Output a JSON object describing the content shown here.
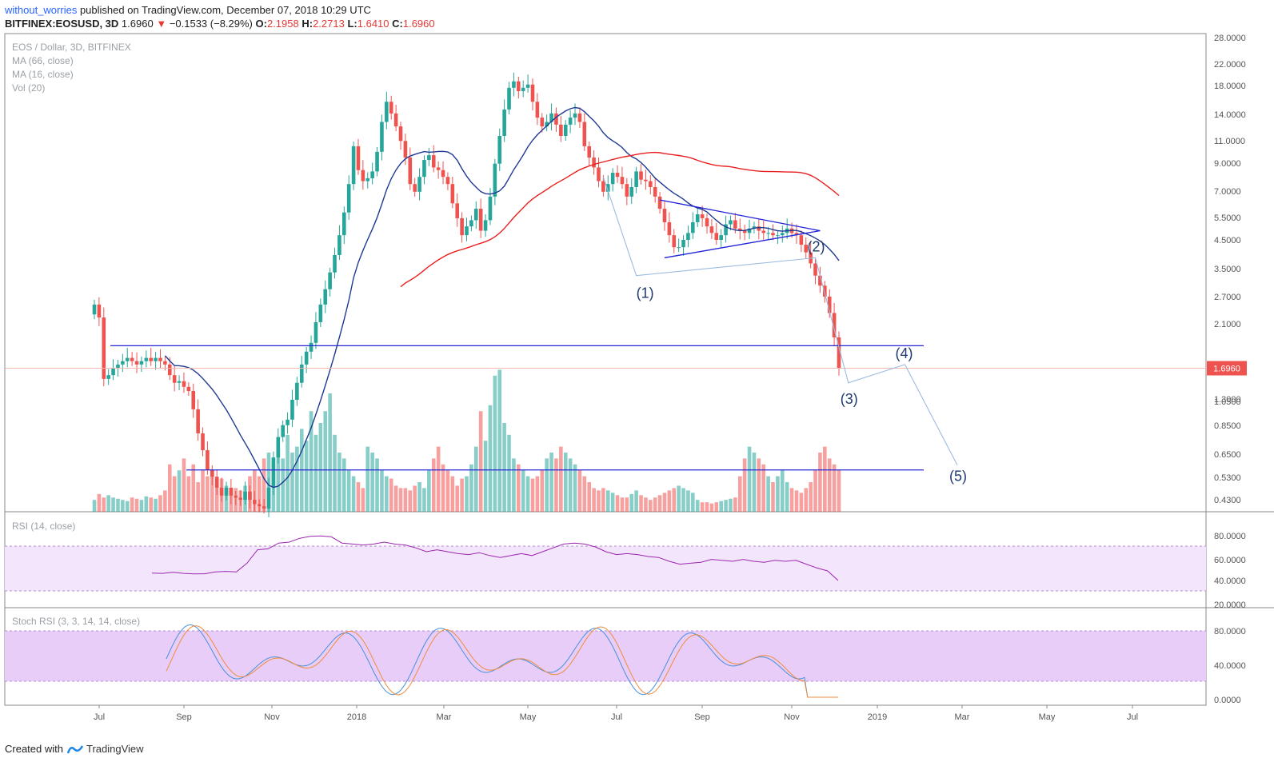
{
  "header": {
    "user": "without_worries",
    "published": "published on TradingView.com, December 07, 2018 10:29 UTC",
    "symbol": "BITFINEX:EOSUSD, 3D",
    "last": "1.6960",
    "change": "−0.1533 (−8.29%)",
    "o_label": "O:",
    "o": "2.1958",
    "h_label": "H:",
    "h": "2.2713",
    "l_label": "L:",
    "l": "1.6410",
    "c_label": "C:",
    "c": "1.6960"
  },
  "legend": {
    "title": "EOS / Dollar, 3D, BITFINEX",
    "ma66": "MA (66, close)",
    "ma16": "MA (16, close)",
    "vol": "Vol (20)"
  },
  "rsi_label": "RSI (14, close)",
  "stoch_label": "Stoch RSI (3, 3, 14, 14, close)",
  "footer": {
    "created": "Created with",
    "brand": "TradingView"
  },
  "colors": {
    "up": "#26a69a",
    "down": "#ef5350",
    "ma66": "#e91e1e",
    "ma16": "#1f3a93",
    "trend": "#2626d9",
    "wave": "#9bbbe0",
    "rsi": "#9c27b0",
    "rsi_band": "#f3e5fb",
    "stoch_band": "#e8cdf8",
    "stoch_k": "#4a90d9",
    "stoch_d": "#f08c3c"
  },
  "chart_data": {
    "type": "candlestick",
    "scale": "log",
    "x_axis": [
      "Jul",
      "Sep",
      "Nov",
      "2018",
      "Mar",
      "May",
      "Jul",
      "Sep",
      "Nov",
      "2019",
      "Mar",
      "May",
      "Jul"
    ],
    "y_axis": [
      "28.0000",
      "22.0000",
      "18.0000",
      "14.0000",
      "11.0000",
      "9.0000",
      "7.0000",
      "5.5000",
      "4.5000",
      "3.5000",
      "2.7000",
      "2.1000",
      "1.3000",
      "1.0500",
      "0.8500",
      "0.6500",
      "0.5300",
      "0.4300"
    ],
    "last_price_label": "1.6960",
    "last_price": 1.696,
    "resistance_1": 2.05,
    "resistance_2": 0.72,
    "closes": [
      2.9,
      2.6,
      1.55,
      1.6,
      1.7,
      1.75,
      1.8,
      1.85,
      1.8,
      1.75,
      1.8,
      1.85,
      1.8,
      1.85,
      1.8,
      1.75,
      1.6,
      1.5,
      1.52,
      1.45,
      1.4,
      1.2,
      0.98,
      0.85,
      0.72,
      0.68,
      0.62,
      0.58,
      0.62,
      0.58,
      0.57,
      0.56,
      0.6,
      0.56,
      0.54,
      0.53,
      0.52,
      0.62,
      0.8,
      0.95,
      1.05,
      1.1,
      1.3,
      1.5,
      1.75,
      1.95,
      2.1,
      2.5,
      2.9,
      3.3,
      3.8,
      4.4,
      5.2,
      6.3,
      8.0,
      11.0,
      9.0,
      8.2,
      8.4,
      8.9,
      10.5,
      13.5,
      16.0,
      14.5,
      13.0,
      11.5,
      10.0,
      8.0,
      7.5,
      8.5,
      9.8,
      10.2,
      9.2,
      9.0,
      8.5,
      8.0,
      6.8,
      6.0,
      5.2,
      5.6,
      5.9,
      6.5,
      5.4,
      5.9,
      7.2,
      9.5,
      12.0,
      15.0,
      18.0,
      19.0,
      17.5,
      18.0,
      18.5,
      16.0,
      14.0,
      13.0,
      13.5,
      14.5,
      13.2,
      12.0,
      13.2,
      14.0,
      14.5,
      13.5,
      11.0,
      10.0,
      9.2,
      8.2,
      7.5,
      8.0,
      8.8,
      8.5,
      8.0,
      7.2,
      7.8,
      8.9,
      8.3,
      8.2,
      7.8,
      7.2,
      6.5,
      5.8,
      5.2,
      4.7,
      4.7,
      5.0,
      5.3,
      5.8,
      6.2,
      6.0,
      5.6,
      5.3,
      5.0,
      5.2,
      5.7,
      5.9,
      5.5,
      5.4,
      5.3,
      5.5,
      5.6,
      5.4,
      5.3,
      5.3,
      5.2,
      5.2,
      5.3,
      5.5,
      5.3,
      5.2,
      4.8,
      4.5,
      4.1,
      3.7,
      3.4,
      3.1,
      2.7,
      2.2,
      1.696
    ],
    "volume": [
      0.1,
      0.15,
      0.12,
      0.14,
      0.12,
      0.11,
      0.1,
      0.09,
      0.12,
      0.11,
      0.1,
      0.13,
      0.12,
      0.11,
      0.14,
      0.18,
      0.4,
      0.3,
      0.35,
      0.45,
      0.3,
      0.4,
      0.25,
      0.35,
      0.3,
      0.35,
      0.25,
      0.28,
      0.22,
      0.2,
      0.2,
      0.18,
      0.22,
      0.3,
      0.35,
      0.3,
      0.45,
      0.5,
      0.4,
      0.55,
      0.45,
      0.65,
      0.5,
      0.55,
      0.7,
      0.6,
      0.85,
      0.65,
      0.75,
      0.85,
      1.0,
      0.65,
      0.5,
      0.45,
      0.35,
      0.3,
      0.25,
      0.2,
      0.55,
      0.5,
      0.45,
      0.35,
      0.3,
      0.28,
      0.22,
      0.2,
      0.2,
      0.18,
      0.22,
      0.25,
      0.2,
      0.35,
      0.45,
      0.55,
      0.4,
      0.35,
      0.3,
      0.22,
      0.28,
      0.3,
      0.4,
      0.55,
      0.85,
      0.6,
      0.9,
      1.15,
      1.2,
      0.75,
      0.65,
      0.45,
      0.4,
      0.35,
      0.3,
      0.28,
      0.3,
      0.35,
      0.45,
      0.5,
      0.45,
      0.55,
      0.5,
      0.45,
      0.4,
      0.35,
      0.3,
      0.25,
      0.2,
      0.18,
      0.2,
      0.18,
      0.16,
      0.14,
      0.12,
      0.12,
      0.15,
      0.18,
      0.14,
      0.12,
      0.1,
      0.12,
      0.14,
      0.16,
      0.18,
      0.2,
      0.22,
      0.2,
      0.18,
      0.16,
      0.1,
      0.08,
      0.08,
      0.07,
      0.08,
      0.09,
      0.1,
      0.11,
      0.12,
      0.3,
      0.45,
      0.55,
      0.5,
      0.45,
      0.4,
      0.3,
      0.25,
      0.3,
      0.35,
      0.25,
      0.2,
      0.18,
      0.16,
      0.2,
      0.25,
      0.35,
      0.5,
      0.55,
      0.45,
      0.4,
      0.35,
      0.55,
      0.55,
      0.55,
      0.55
    ],
    "rsi": [
      [
        0.121,
        0.823
      ],
      [
        0.14,
        0.826
      ],
      [
        0.15,
        0.813
      ],
      [
        0.165,
        0.826
      ],
      [
        0.18,
        0.832
      ],
      [
        0.2,
        0.83
      ],
      [
        0.22,
        0.81
      ],
      [
        0.24,
        0.805
      ],
      [
        0.28,
        0.81
      ],
      [
        0.3,
        0.72
      ],
      [
        0.31,
        0.58
      ],
      [
        0.32,
        0.57
      ],
      [
        0.34,
        0.51
      ],
      [
        0.36,
        0.5
      ],
      [
        0.38,
        0.46
      ],
      [
        0.385,
        0.44
      ],
      [
        0.4,
        0.435
      ],
      [
        0.41,
        0.445
      ],
      [
        0.42,
        0.51
      ],
      [
        0.43,
        0.52
      ],
      [
        0.44,
        0.53
      ],
      [
        0.45,
        0.52
      ],
      [
        0.46,
        0.5
      ],
      [
        0.47,
        0.52
      ],
      [
        0.48,
        0.53
      ],
      [
        0.49,
        0.56
      ],
      [
        0.5,
        0.6
      ],
      [
        0.51,
        0.58
      ],
      [
        0.52,
        0.6
      ],
      [
        0.53,
        0.62
      ],
      [
        0.54,
        0.63
      ],
      [
        0.55,
        0.61
      ],
      [
        0.56,
        0.64
      ],
      [
        0.57,
        0.66
      ],
      [
        0.58,
        0.64
      ],
      [
        0.59,
        0.62
      ],
      [
        0.6,
        0.64
      ],
      [
        0.61,
        0.6
      ],
      [
        0.62,
        0.56
      ],
      [
        0.63,
        0.52
      ],
      [
        0.64,
        0.51
      ],
      [
        0.65,
        0.52
      ],
      [
        0.66,
        0.55
      ],
      [
        0.67,
        0.6
      ],
      [
        0.68,
        0.63
      ],
      [
        0.69,
        0.62
      ],
      [
        0.7,
        0.63
      ],
      [
        0.71,
        0.65
      ],
      [
        0.72,
        0.66
      ],
      [
        0.73,
        0.7
      ],
      [
        0.74,
        0.73
      ],
      [
        0.75,
        0.72
      ],
      [
        0.76,
        0.71
      ],
      [
        0.77,
        0.68
      ],
      [
        0.78,
        0.69
      ],
      [
        0.79,
        0.7
      ],
      [
        0.8,
        0.68
      ],
      [
        0.81,
        0.7
      ],
      [
        0.82,
        0.71
      ],
      [
        0.83,
        0.69
      ],
      [
        0.84,
        0.7
      ],
      [
        0.85,
        0.69
      ],
      [
        0.86,
        0.73
      ],
      [
        0.87,
        0.77
      ],
      [
        0.88,
        0.8
      ],
      [
        0.89,
        0.9
      ]
    ],
    "stoch_k": [
      0.121,
      0.16,
      0.2,
      0.25,
      0.3,
      0.33,
      0.38,
      0.42,
      0.5,
      0.53,
      0.58,
      0.6,
      0.62,
      0.65,
      0.68,
      0.7,
      0.73,
      0.76,
      0.78,
      0.8,
      0.83,
      0.86,
      0.88
    ],
    "wave_points": {
      "labels": [
        "(1)",
        "(2)",
        "(3)",
        "(4)",
        "(5)"
      ],
      "prices": [
        3.7,
        4.3,
        1.5,
        1.75,
        0.75
      ]
    }
  }
}
